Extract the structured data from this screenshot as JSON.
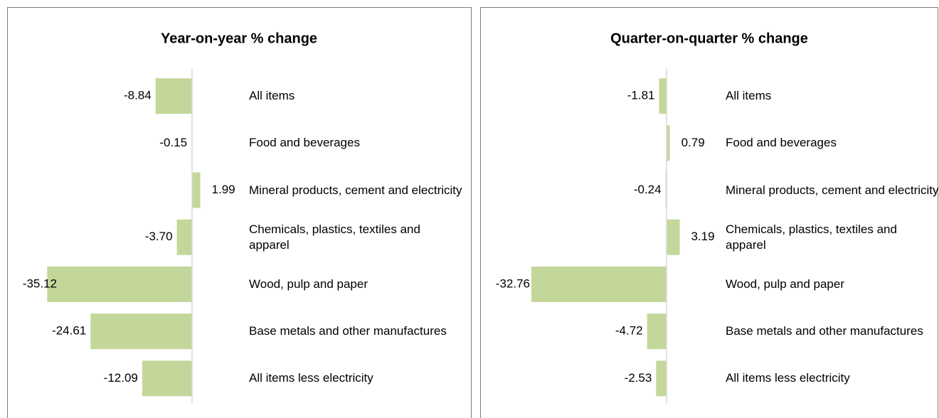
{
  "chart_data": [
    {
      "type": "bar",
      "orientation": "horizontal",
      "title": "Year-on-year % change",
      "categories": [
        "All items",
        "Food and beverages",
        "Mineral products, cement and electricity",
        "Chemicals, plastics, textiles and apparel",
        "Wood, pulp and paper",
        "Base metals and other manufactures",
        "All items less electricity"
      ],
      "values": [
        -8.84,
        -0.15,
        1.99,
        -3.7,
        -35.12,
        -24.61,
        -12.09
      ],
      "value_labels": [
        "-8.84",
        "-0.15",
        "1.99",
        "-3.70",
        "-35.12",
        "-24.61",
        "-12.09"
      ],
      "color": "#c4d79b",
      "xlim": [
        -40,
        20
      ]
    },
    {
      "type": "bar",
      "orientation": "horizontal",
      "title": "Quarter-on-quarter % change",
      "categories": [
        "All items",
        "Food and beverages",
        "Mineral products, cement and electricity",
        "Chemicals, plastics, textiles and apparel",
        "Wood, pulp and paper",
        "Base metals and other manufactures",
        "All items less electricity"
      ],
      "values": [
        -1.81,
        0.79,
        -0.24,
        3.19,
        -32.76,
        -4.72,
        -2.53
      ],
      "value_labels": [
        "-1.81",
        "0.79",
        "-0.24",
        "3.19",
        "-32.76",
        "-4.72",
        "-2.53"
      ],
      "color": "#c4d79b",
      "xlim": [
        -40,
        20
      ]
    }
  ]
}
